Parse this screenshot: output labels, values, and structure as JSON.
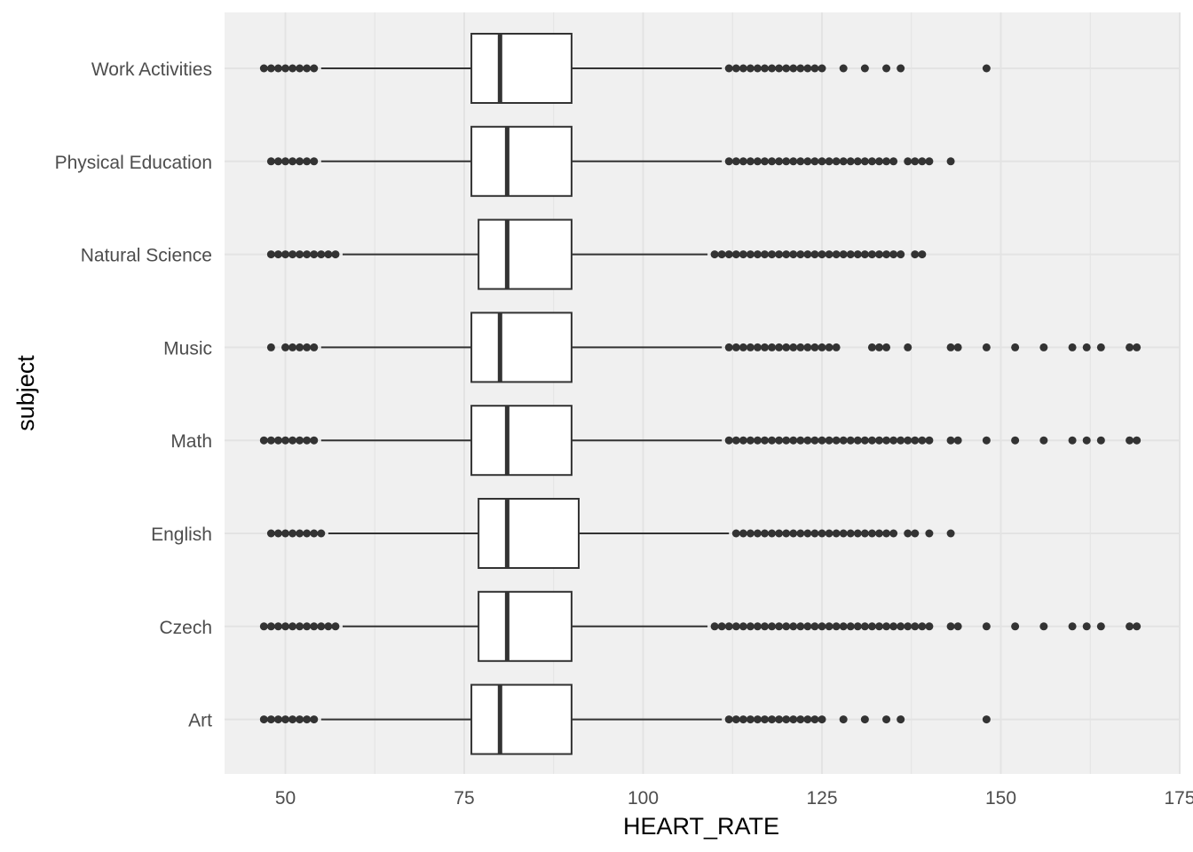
{
  "chart_data": {
    "type": "boxplot",
    "orientation": "horizontal",
    "xlabel": "HEART_RATE",
    "ylabel": "subject",
    "xlim": [
      41.5,
      175
    ],
    "x_ticks": [
      50,
      75,
      100,
      125,
      150,
      175
    ],
    "grid": true,
    "legend": "none",
    "colors": {
      "panel": "#f0f0f0",
      "grid": "#e3e3e3",
      "box_fill": "#ffffff",
      "stroke": "#333333",
      "outlier": "#333333"
    },
    "categories": [
      "Work Activities",
      "Physical Education",
      "Natural Science",
      "Music",
      "Math",
      "English",
      "Czech",
      "Art"
    ],
    "boxes": [
      {
        "category": "Work Activities",
        "whisker_low": 55,
        "q1": 76,
        "median": 80,
        "q3": 90,
        "whisker_high": 111,
        "outliers": [
          47,
          48,
          49,
          50,
          51,
          52,
          53,
          54,
          112,
          113,
          114,
          115,
          116,
          117,
          118,
          119,
          120,
          121,
          122,
          123,
          124,
          125,
          128,
          131,
          134,
          136,
          148
        ]
      },
      {
        "category": "Physical Education",
        "whisker_low": 55,
        "q1": 76,
        "median": 81,
        "q3": 90,
        "whisker_high": 111,
        "outliers": [
          48,
          49,
          50,
          51,
          52,
          53,
          54,
          112,
          113,
          114,
          115,
          116,
          117,
          118,
          119,
          120,
          121,
          122,
          123,
          124,
          125,
          126,
          127,
          128,
          129,
          130,
          131,
          132,
          133,
          134,
          135,
          137,
          138,
          139,
          140,
          143
        ]
      },
      {
        "category": "Natural Science",
        "whisker_low": 58,
        "q1": 77,
        "median": 81,
        "q3": 90,
        "whisker_high": 109,
        "outliers": [
          48,
          49,
          50,
          51,
          52,
          53,
          54,
          55,
          56,
          57,
          110,
          111,
          112,
          113,
          114,
          115,
          116,
          117,
          118,
          119,
          120,
          121,
          122,
          123,
          124,
          125,
          126,
          127,
          128,
          129,
          130,
          131,
          132,
          133,
          134,
          135,
          136,
          138,
          139
        ]
      },
      {
        "category": "Music",
        "whisker_low": 55,
        "q1": 76,
        "median": 80,
        "q3": 90,
        "whisker_high": 111,
        "outliers": [
          48,
          50,
          51,
          52,
          53,
          54,
          112,
          113,
          114,
          115,
          116,
          117,
          118,
          119,
          120,
          121,
          122,
          123,
          124,
          125,
          126,
          127,
          132,
          133,
          134,
          137,
          143,
          144,
          148,
          152,
          156,
          160,
          162,
          164,
          168,
          169
        ]
      },
      {
        "category": "Math",
        "whisker_low": 55,
        "q1": 76,
        "median": 81,
        "q3": 90,
        "whisker_high": 111,
        "outliers": [
          47,
          48,
          49,
          50,
          51,
          52,
          53,
          54,
          112,
          113,
          114,
          115,
          116,
          117,
          118,
          119,
          120,
          121,
          122,
          123,
          124,
          125,
          126,
          127,
          128,
          129,
          130,
          131,
          132,
          133,
          134,
          135,
          136,
          137,
          138,
          139,
          140,
          143,
          144,
          148,
          152,
          156,
          160,
          162,
          164,
          168,
          169
        ]
      },
      {
        "category": "English",
        "whisker_low": 56,
        "q1": 77,
        "median": 81,
        "q3": 91,
        "whisker_high": 112,
        "outliers": [
          48,
          49,
          50,
          51,
          52,
          53,
          54,
          55,
          113,
          114,
          115,
          116,
          117,
          118,
          119,
          120,
          121,
          122,
          123,
          124,
          125,
          126,
          127,
          128,
          129,
          130,
          131,
          132,
          133,
          134,
          135,
          137,
          138,
          140,
          143
        ]
      },
      {
        "category": "Czech",
        "whisker_low": 58,
        "q1": 77,
        "median": 81,
        "q3": 90,
        "whisker_high": 109,
        "outliers": [
          47,
          48,
          49,
          50,
          51,
          52,
          53,
          54,
          55,
          56,
          57,
          110,
          111,
          112,
          113,
          114,
          115,
          116,
          117,
          118,
          119,
          120,
          121,
          122,
          123,
          124,
          125,
          126,
          127,
          128,
          129,
          130,
          131,
          132,
          133,
          134,
          135,
          136,
          137,
          138,
          139,
          140,
          143,
          144,
          148,
          152,
          156,
          160,
          162,
          164,
          168,
          169
        ]
      },
      {
        "category": "Art",
        "whisker_low": 55,
        "q1": 76,
        "median": 80,
        "q3": 90,
        "whisker_high": 111,
        "outliers": [
          47,
          48,
          49,
          50,
          51,
          52,
          53,
          54,
          112,
          113,
          114,
          115,
          116,
          117,
          118,
          119,
          120,
          121,
          122,
          123,
          124,
          125,
          128,
          131,
          134,
          136,
          148
        ]
      }
    ]
  }
}
